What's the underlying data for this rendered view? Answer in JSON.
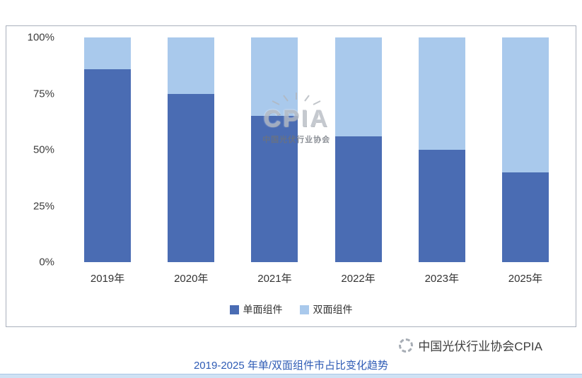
{
  "chart_data": {
    "type": "bar",
    "subtype": "stacked-100",
    "categories": [
      "2019年",
      "2020年",
      "2021年",
      "2022年",
      "2023年",
      "2025年"
    ],
    "series": [
      {
        "name": "单面组件",
        "color": "#4a6cb3",
        "values": [
          86,
          75,
          65,
          56,
          50,
          40
        ]
      },
      {
        "name": "双面组件",
        "color": "#a9c9ec",
        "values": [
          14,
          25,
          35,
          44,
          50,
          60
        ]
      }
    ],
    "y_ticks": [
      "100%",
      "75%",
      "50%",
      "25%",
      "0%"
    ],
    "ylim": [
      0,
      100
    ],
    "grid": false,
    "legend_position": "bottom",
    "title": "",
    "xlabel": "",
    "ylabel": ""
  },
  "watermark": {
    "brand": "CPIA",
    "subtitle": "中国光伏行业协会"
  },
  "attribution": {
    "text": "中国光伏行业协会CPIA"
  },
  "caption": {
    "text": "2019-2025 年单/双面组件市占比变化趋势"
  }
}
